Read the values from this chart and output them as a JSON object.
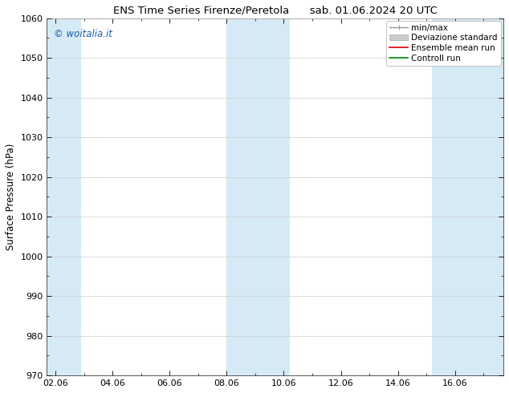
{
  "title_left": "ENS Time Series Firenze/Peretola",
  "title_right": "sab. 01.06.2024 20 UTC",
  "ylabel": "Surface Pressure (hPa)",
  "ylim": [
    970,
    1060
  ],
  "yticks": [
    970,
    980,
    990,
    1000,
    1010,
    1020,
    1030,
    1040,
    1050,
    1060
  ],
  "xtick_labels": [
    "02.06",
    "04.06",
    "06.06",
    "08.06",
    "10.06",
    "12.06",
    "14.06",
    "16.06"
  ],
  "xtick_positions": [
    0,
    2,
    4,
    6,
    8,
    10,
    12,
    14
  ],
  "xlim": [
    -0.3,
    15.7
  ],
  "shade_bands": [
    {
      "x_start": -0.3,
      "x_end": 0.9
    },
    {
      "x_start": 6.0,
      "x_end": 8.2
    },
    {
      "x_start": 13.2,
      "x_end": 15.7
    }
  ],
  "shade_color": "#d6eaf5",
  "background_color": "#ffffff",
  "watermark": "© woitalia.it",
  "watermark_color": "#1a5fa8",
  "legend_items": [
    {
      "label": "min/max",
      "color": "#999999",
      "lw": 1.0
    },
    {
      "label": "Deviazione standard",
      "color": "#cccccc",
      "lw": 4
    },
    {
      "label": "Ensemble mean run",
      "color": "#dd0000",
      "lw": 1.2
    },
    {
      "label": "Controll run",
      "color": "#008800",
      "lw": 1.2
    }
  ],
  "title_fontsize": 9.5,
  "axis_label_fontsize": 8.5,
  "tick_fontsize": 8,
  "watermark_fontsize": 8.5,
  "legend_fontsize": 7.5
}
